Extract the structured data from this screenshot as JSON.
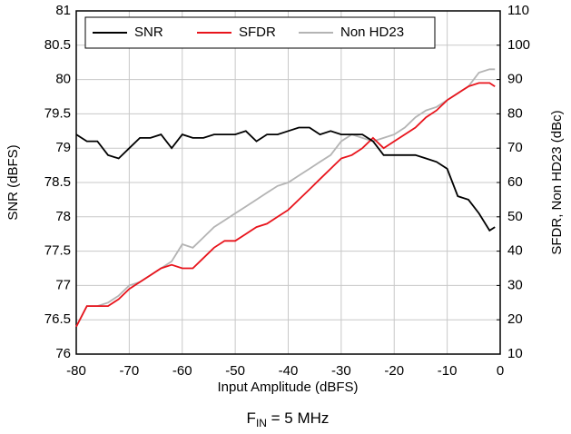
{
  "chart_data": {
    "type": "line",
    "title": {
      "main": "F",
      "sub": "IN",
      "rest": " = 5 MHz"
    },
    "x_label": "Input Amplitude (dBFS)",
    "y_label": "SNR (dBFS)",
    "y2_label": "SFDR, Non HD23 (dBc)",
    "x": [
      -80,
      -78,
      -76,
      -74,
      -72,
      -70,
      -68,
      -66,
      -64,
      -62,
      -60,
      -58,
      -56,
      -54,
      -52,
      -50,
      -48,
      -46,
      -44,
      -42,
      -40,
      -38,
      -36,
      -34,
      -32,
      -30,
      -28,
      -26,
      -24,
      -22,
      -20,
      -18,
      -16,
      -14,
      -12,
      -10,
      -8,
      -6,
      -4,
      -2,
      -1
    ],
    "series": [
      {
        "name": "SNR",
        "color": "#000000",
        "axis": "y",
        "values": [
          79.2,
          79.1,
          79.1,
          78.9,
          78.85,
          79.0,
          79.15,
          79.15,
          79.2,
          79.0,
          79.2,
          79.15,
          79.15,
          79.2,
          79.2,
          79.2,
          79.25,
          79.1,
          79.2,
          79.2,
          79.25,
          79.3,
          79.3,
          79.2,
          79.25,
          79.2,
          79.2,
          79.2,
          79.1,
          78.9,
          78.9,
          78.9,
          78.9,
          78.85,
          78.8,
          78.7,
          78.3,
          78.25,
          78.05,
          77.8,
          77.85
        ]
      },
      {
        "name": "SFDR",
        "color": "#e8141c",
        "axis": "y2",
        "values": [
          18,
          24,
          24,
          24,
          26,
          29,
          31,
          33,
          35,
          36,
          35,
          35,
          38,
          41,
          43,
          43,
          45,
          47,
          48,
          50,
          52,
          55,
          58,
          61,
          64,
          67,
          68,
          70,
          73,
          70,
          72,
          74,
          76,
          79,
          81,
          84,
          86,
          88,
          89,
          89,
          88
        ]
      },
      {
        "name": "Non HD23",
        "color": "#b4b4b4",
        "axis": "y2",
        "values": [
          18,
          24,
          24,
          25,
          27,
          30,
          31,
          33,
          35,
          37,
          42,
          41,
          44,
          47,
          49,
          51,
          53,
          55,
          57,
          59,
          60,
          62,
          64,
          66,
          68,
          72,
          74,
          73,
          72,
          73,
          74,
          76,
          79,
          81,
          82,
          84,
          86,
          88,
          92,
          93,
          93
        ]
      }
    ],
    "xlim": [
      -80,
      0
    ],
    "xticks": [
      -80,
      -70,
      -60,
      -50,
      -40,
      -30,
      -20,
      -10,
      0
    ],
    "ylim": [
      76,
      81
    ],
    "yticks": [
      76,
      76.5,
      77,
      77.5,
      78,
      78.5,
      79,
      79.5,
      80,
      80.5,
      81
    ],
    "y2lim": [
      10,
      110
    ],
    "y2ticks": [
      10,
      20,
      30,
      40,
      50,
      60,
      70,
      80,
      90,
      100,
      110
    ],
    "grid": true,
    "legend": "top-left"
  }
}
